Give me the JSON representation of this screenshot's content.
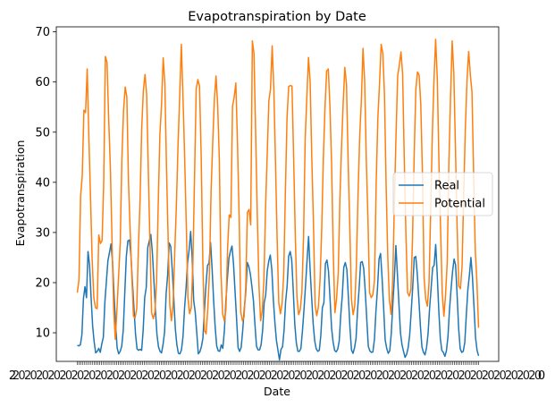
{
  "chart_data": {
    "type": "line",
    "title": "Evapotranspiration by Date",
    "xlabel": "Date",
    "ylabel": "Evapotranspiration",
    "ylim": [
      4.3,
      71.0
    ],
    "yticks": [
      10,
      20,
      30,
      40,
      50,
      60,
      70
    ],
    "grid": false,
    "legend_position": "center-right",
    "x_tick_count": 216,
    "x_tick_labels_first": "2",
    "x_tick_labels_last": "0",
    "series": [
      {
        "name": "Real",
        "color": "#1f77b4",
        "values": [
          7.5,
          7.4,
          7.6,
          9.6,
          16.8,
          19.2,
          17.0,
          26.2,
          23.5,
          17.1,
          11.4,
          8.2,
          6.0,
          6.3,
          6.9,
          6.1,
          7.8,
          9.1,
          16.1,
          20.3,
          24.4,
          26.0,
          27.7,
          24.2,
          17.6,
          11.7,
          7.0,
          5.8,
          6.3,
          7.3,
          10.5,
          18.0,
          25.2,
          28.3,
          28.5,
          25.5,
          20.0,
          14.9,
          9.8,
          6.8,
          6.5,
          6.7,
          6.5,
          10.5,
          17.0,
          19.0,
          27.0,
          28.3,
          29.6,
          26.1,
          20.5,
          14.6,
          9.7,
          7.2,
          6.3,
          6.0,
          7.7,
          10.2,
          17.8,
          21.6,
          27.9,
          27.2,
          22.5,
          16.8,
          10.8,
          7.6,
          5.9,
          5.8,
          6.6,
          9.2,
          14.8,
          18.9,
          24.0,
          26.5,
          30.2,
          25.0,
          16.4,
          14.1,
          10.0,
          5.8,
          6.2,
          7.2,
          8.9,
          14.5,
          19.5,
          23.4,
          23.9,
          28.0,
          22.8,
          16.5,
          11.2,
          7.4,
          6.4,
          6.3,
          7.6,
          6.9,
          10.3,
          16.3,
          20.9,
          24.9,
          26.3,
          27.3,
          23.7,
          18.2,
          12.7,
          7.0,
          6.3,
          7.1,
          10.5,
          14.8,
          18.1,
          24.0,
          23.2,
          21.7,
          19.2,
          16.4,
          11.6,
          7.3,
          6.6,
          6.6,
          7.6,
          10.5,
          16.0,
          17.5,
          22.3,
          24.3,
          25.5,
          22.6,
          16.6,
          12.1,
          8.5,
          6.5,
          4.6,
          6.7,
          7.2,
          10.5,
          16.2,
          19.3,
          25.3,
          26.2,
          24.5,
          18.4,
          11.7,
          8.0,
          6.3,
          6.3,
          6.9,
          10.4,
          14.6,
          19.4,
          24.4,
          29.2,
          22.6,
          17.1,
          11.8,
          8.4,
          6.8,
          6.3,
          6.5,
          9.5,
          15.0,
          16.0,
          23.8,
          24.5,
          22.3,
          16.9,
          11.0,
          8.2,
          6.5,
          6.2,
          6.7,
          8.3,
          13.5,
          17.4,
          23.1,
          24.0,
          22.6,
          17.1,
          11.1,
          6.6,
          5.9,
          7.0,
          8.9,
          14.6,
          18.8,
          24.0,
          24.2,
          22.8,
          18.3,
          12.6,
          7.3,
          6.4,
          6.1,
          6.2,
          8.7,
          14.4,
          18.9,
          24.7,
          25.8,
          20.9,
          15.0,
          8.6,
          6.9,
          5.9,
          6.4,
          9.9,
          15.7,
          20.8,
          27.4,
          21.7,
          15.7,
          10.0,
          7.6,
          6.3,
          5.1,
          5.7,
          7.0,
          9.5,
          14.2,
          19.2,
          25.0,
          25.2,
          21.6,
          16.7,
          11.4,
          7.2,
          6.1,
          5.6,
          7.0,
          9.8,
          14.8,
          18.8,
          23.0,
          23.5,
          27.6,
          21.6,
          14.6,
          8.9,
          6.5,
          6.1,
          5.3,
          6.4,
          9.2,
          14.6,
          18.6,
          22.2,
          24.7,
          23.5,
          17.4,
          10.8,
          6.8,
          6.1,
          6.3,
          8.1,
          13.6,
          18.6,
          21.5,
          25.0,
          21.1,
          15.2,
          9.1,
          6.5,
          5.4
        ],
        "points": "see values"
      },
      {
        "name": "Potential",
        "color": "#ff7f0e",
        "values": [
          18.0,
          20.5,
          37.3,
          41.3,
          54.4,
          53.9,
          62.6,
          49.0,
          37.0,
          24.5,
          17.0,
          15.0,
          14.8,
          29.5,
          27.8,
          28.4,
          40.1,
          65.1,
          63.9,
          52.6,
          43.3,
          28.6,
          14.9,
          8.7,
          14.6,
          21.3,
          28.0,
          44.8,
          54.3,
          59.0,
          57.0,
          40.0,
          30.5,
          21.5,
          13.3,
          13.0,
          14.8,
          27.0,
          36.3,
          50.8,
          58.3,
          61.5,
          57.6,
          42.3,
          27.8,
          14.0,
          12.8,
          14.2,
          20.2,
          35.5,
          49.5,
          55.4,
          64.8,
          59.8,
          43.0,
          28.8,
          15.6,
          12.4,
          15.6,
          26.0,
          35.5,
          47.4,
          57.2,
          67.5,
          56.9,
          45.0,
          31.4,
          17.0,
          13.8,
          15.0,
          23.9,
          41.2,
          58.6,
          60.5,
          59.2,
          45.5,
          24.6,
          10.5,
          9.8,
          14.7,
          21.8,
          38.2,
          47.9,
          56.5,
          61.2,
          55.4,
          44.5,
          22.0,
          13.8,
          12.4,
          14.6,
          26.8,
          33.5,
          33.0,
          55.2,
          57.0,
          59.8,
          47.7,
          33.2,
          14.1,
          12.4,
          13.2,
          19.2,
          34.0,
          34.6,
          31.5,
          68.2,
          65.6,
          49.7,
          33.4,
          19.5,
          12.4,
          14.4,
          20.5,
          35.0,
          45.6,
          56.3,
          58.6,
          67.2,
          58.7,
          44.2,
          28.8,
          16.0,
          13.8,
          15.8,
          21.8,
          38.0,
          52.8,
          59.1,
          59.3,
          59.2,
          45.0,
          29.5,
          17.2,
          13.6,
          14.6,
          18.1,
          29.1,
          48.7,
          57.0,
          64.9,
          60.0,
          44.8,
          31.9,
          15.5,
          13.4,
          15.2,
          20.6,
          30.7,
          44.8,
          55.0,
          62.2,
          62.6,
          55.0,
          43.6,
          26.0,
          14.0,
          16.8,
          21.8,
          36.5,
          47.0,
          55.8,
          62.9,
          59.6,
          44.4,
          31.2,
          16.8,
          13.6,
          15.4,
          23.5,
          37.6,
          49.1,
          56.2,
          66.7,
          60.3,
          44.5,
          32.7,
          18.0,
          17.0,
          17.6,
          20.6,
          40.0,
          52.8,
          59.6,
          67.5,
          65.8,
          57.6,
          39.4,
          25.3,
          16.5,
          13.7,
          20.4,
          35.9,
          49.4,
          61.2,
          63.4,
          66.0,
          61.6,
          44.4,
          29.6,
          18.0,
          17.3,
          18.6,
          28.8,
          45.5,
          58.5,
          62.0,
          61.4,
          55.5,
          41.6,
          21.0,
          16.7,
          15.3,
          20.0,
          34.5,
          49.7,
          60.4,
          68.5,
          60.6,
          44.0,
          30.6,
          17.8,
          13.3,
          17.6,
          24.0,
          43.7,
          56.8,
          68.2,
          61.8,
          46.8,
          31.1,
          19.3,
          18.8,
          23.3,
          37.8,
          51.0,
          60.5,
          66.1,
          61.5,
          58.0,
          41.5,
          26.5,
          20.0,
          11.0
        ]
      }
    ]
  }
}
